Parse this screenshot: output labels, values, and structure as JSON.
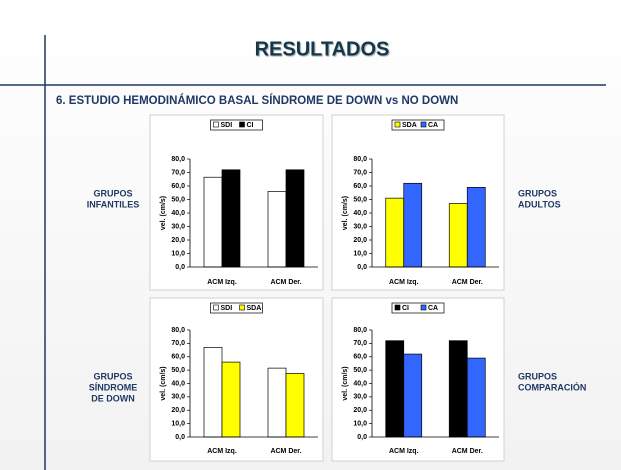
{
  "title": "RESULTADOS",
  "subtitle": "6. ESTUDIO HEMODINÁMICO BASAL SÍNDROME DE DOWN vs NO DOWN",
  "groups": [
    [
      "GRUPOS",
      "INFANTILES"
    ],
    [
      "GRUPOS",
      "ADULTOS"
    ],
    [
      "GRUPOS",
      "SÍNDROME",
      "DE DOWN"
    ],
    [
      "GRUPOS",
      "COMPARACIÓN"
    ]
  ],
  "chart_data": [
    {
      "type": "bar",
      "ylabel": "vel. (cm/s)",
      "categories": [
        "ACM Izq.",
        "ACM Der."
      ],
      "ylim": [
        0,
        80
      ],
      "yticks": [
        {
          "value": 0,
          "label": "0,0"
        },
        {
          "value": 10,
          "label": "10,0"
        },
        {
          "value": 20,
          "label": "20,0"
        },
        {
          "value": 30,
          "label": "30,0"
        },
        {
          "value": 40,
          "label": "40,0"
        },
        {
          "value": 50,
          "label": "50,0"
        },
        {
          "value": 60,
          "label": "60,0"
        },
        {
          "value": 70,
          "label": "70,0"
        },
        {
          "value": 80,
          "label": "80,0"
        }
      ],
      "series": [
        {
          "name": "SDI",
          "color": "#ffffff",
          "values": [
            66.5,
            56
          ]
        },
        {
          "name": "CI",
          "color": "#000000",
          "values": [
            72,
            72
          ]
        }
      ]
    },
    {
      "type": "bar",
      "ylabel": "vel. (cm/s)",
      "categories": [
        "ACM Izq.",
        "ACM Der."
      ],
      "ylim": [
        0,
        80
      ],
      "yticks": [
        {
          "value": 0,
          "label": "0,0"
        },
        {
          "value": 10,
          "label": "10,0"
        },
        {
          "value": 20,
          "label": "20,0"
        },
        {
          "value": 30,
          "label": "30,0"
        },
        {
          "value": 40,
          "label": "40,0"
        },
        {
          "value": 50,
          "label": "50,0"
        },
        {
          "value": 60,
          "label": "60,0"
        },
        {
          "value": 70,
          "label": "70,0"
        },
        {
          "value": 80,
          "label": "80,0"
        }
      ],
      "series": [
        {
          "name": "SDA",
          "color": "#ffff00",
          "values": [
            51,
            47
          ]
        },
        {
          "name": "CA",
          "color": "#3366ff",
          "values": [
            62,
            59
          ]
        }
      ]
    },
    {
      "type": "bar",
      "ylabel": "vel. (cm/s)",
      "categories": [
        "ACM Izq.",
        "ACM Der."
      ],
      "ylim": [
        0,
        80
      ],
      "yticks": [
        {
          "value": 0,
          "label": "0,0"
        },
        {
          "value": 10,
          "label": "10,0"
        },
        {
          "value": 20,
          "label": "20,0"
        },
        {
          "value": 30,
          "label": "30,0"
        },
        {
          "value": 40,
          "label": "40,0"
        },
        {
          "value": 50,
          "label": "50,0"
        },
        {
          "value": 60,
          "label": "60,0"
        },
        {
          "value": 70,
          "label": "70,0"
        },
        {
          "value": 80,
          "label": "80,0"
        }
      ],
      "series": [
        {
          "name": "SDI",
          "color": "#ffffff",
          "values": [
            67,
            51.5
          ]
        },
        {
          "name": "SDA",
          "color": "#ffff00",
          "values": [
            56,
            47.5
          ]
        }
      ]
    },
    {
      "type": "bar",
      "ylabel": "vel. (cm/s)",
      "categories": [
        "ACM Izq.",
        "ACM Der."
      ],
      "ylim": [
        0,
        80
      ],
      "yticks": [
        {
          "value": 0,
          "label": "0,0"
        },
        {
          "value": 10,
          "label": "10,0"
        },
        {
          "value": 20,
          "label": "20,0"
        },
        {
          "value": 30,
          "label": "30,0"
        },
        {
          "value": 40,
          "label": "40,0"
        },
        {
          "value": 50,
          "label": "50,0"
        },
        {
          "value": 60,
          "label": "60,0"
        },
        {
          "value": 70,
          "label": "70,0"
        },
        {
          "value": 80,
          "label": "80,0"
        }
      ],
      "series": [
        {
          "name": "CI",
          "color": "#000000",
          "values": [
            72,
            72
          ]
        },
        {
          "name": "CA",
          "color": "#3366ff",
          "values": [
            62,
            59
          ]
        }
      ]
    }
  ]
}
